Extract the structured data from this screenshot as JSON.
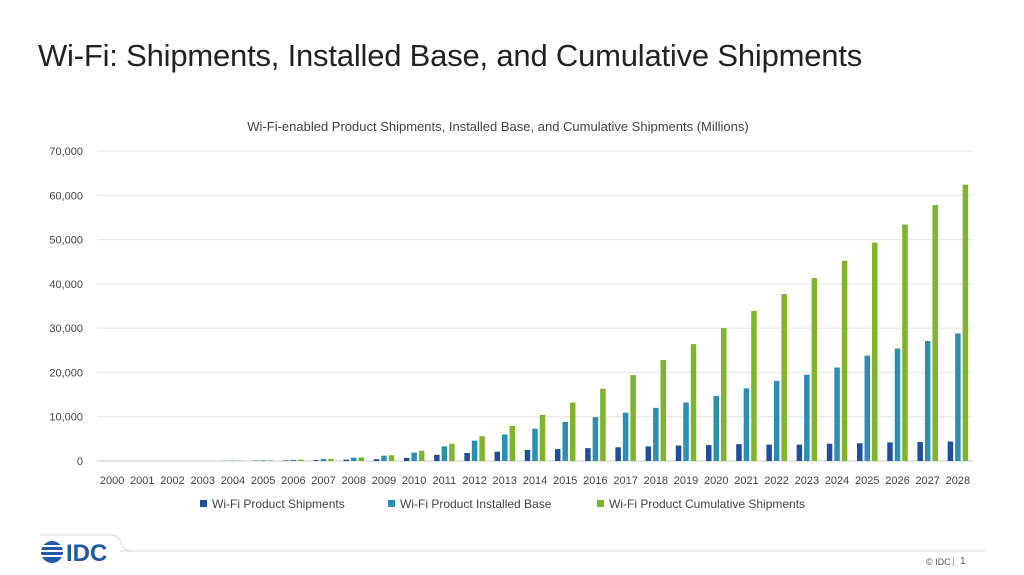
{
  "slide": {
    "title": "Wi-Fi: Shipments, Installed Base, and Cumulative Shipments",
    "copyright": "© IDC",
    "separator": "|",
    "page_number": "1",
    "logo_text": "IDC"
  },
  "colors": {
    "shipments": "#1f4e9c",
    "installed_base": "#2a8fb0",
    "cumulative": "#7fb52b",
    "grid": "#e3e3e3",
    "axis_text": "#444444"
  },
  "chart_data": {
    "type": "bar",
    "title": "Wi-Fi-enabled Product Shipments, Installed Base, and Cumulative Shipments (Millions)",
    "xlabel": "",
    "ylabel": "",
    "ylim": [
      0,
      70000
    ],
    "yticks": [
      0,
      10000,
      20000,
      30000,
      40000,
      50000,
      60000,
      70000
    ],
    "ytick_labels": [
      "0",
      "10,000",
      "20,000",
      "30,000",
      "40,000",
      "50,000",
      "60,000",
      "70,000"
    ],
    "legend_position": "bottom",
    "grid": true,
    "categories": [
      "2000",
      "2001",
      "2002",
      "2003",
      "2004",
      "2005",
      "2006",
      "2007",
      "2008",
      "2009",
      "2010",
      "2011",
      "2012",
      "2013",
      "2014",
      "2015",
      "2016",
      "2017",
      "2018",
      "2019",
      "2020",
      "2021",
      "2022",
      "2023",
      "2024",
      "2025",
      "2026",
      "2027",
      "2028"
    ],
    "series": [
      {
        "name": "Wi-Fi Product Shipments",
        "values": [
          1,
          3,
          6,
          20,
          40,
          90,
          130,
          200,
          300,
          400,
          700,
          1400,
          1800,
          2100,
          2500,
          2700,
          2900,
          3100,
          3300,
          3500,
          3600,
          3800,
          3700,
          3700,
          3900,
          4000,
          4200,
          4300,
          4400
        ]
      },
      {
        "name": "Wi-Fi Product Installed Base",
        "values": [
          2,
          5,
          12,
          30,
          80,
          160,
          260,
          450,
          750,
          1200,
          1900,
          3300,
          4600,
          6000,
          7300,
          8800,
          9900,
          10900,
          12000,
          13200,
          14700,
          16400,
          18100,
          19500,
          21100,
          23800,
          25400,
          27100,
          28800
        ]
      },
      {
        "name": "Wi-Fi Product Cumulative Shipments",
        "values": [
          2,
          6,
          14,
          35,
          80,
          170,
          300,
          500,
          800,
          1300,
          2300,
          3900,
          5600,
          7900,
          10400,
          13200,
          16300,
          19400,
          22800,
          26400,
          30000,
          33900,
          37700,
          41300,
          45200,
          49300,
          53400,
          57800,
          62400
        ]
      }
    ]
  }
}
